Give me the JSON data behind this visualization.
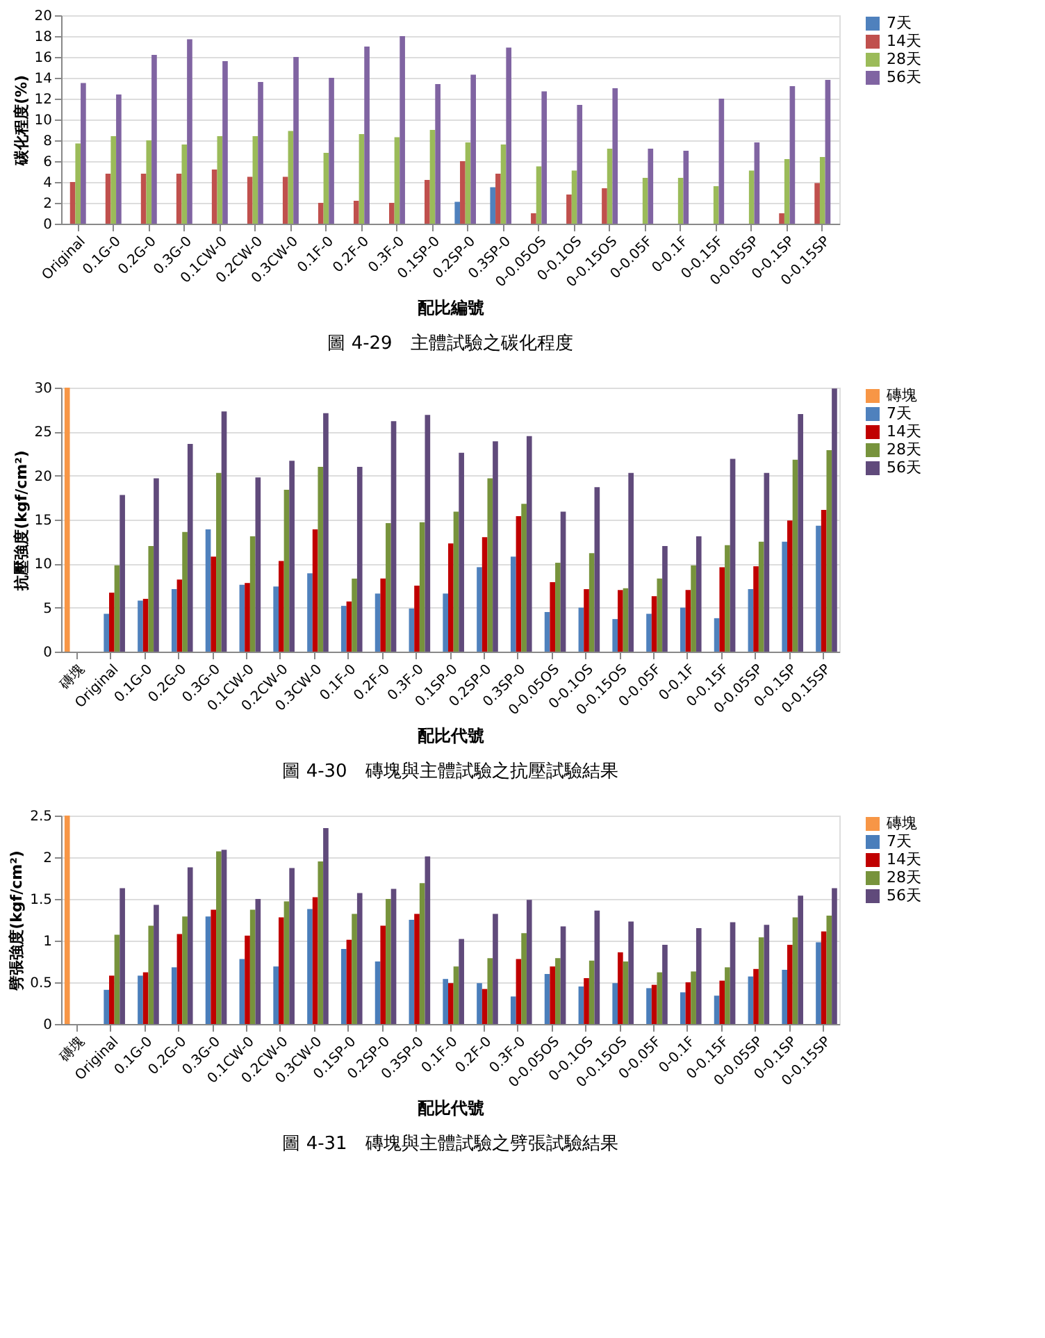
{
  "chart_data": [
    {
      "type": "bar",
      "title": "圖 4-29　主體試驗之碳化程度",
      "xlabel": "配比編號",
      "ylabel": "碳化程度(%)",
      "ylim": [
        0,
        20
      ],
      "yticks": [
        0,
        2,
        4,
        6,
        8,
        10,
        12,
        14,
        16,
        18,
        20
      ],
      "grid": "y",
      "legend": "right",
      "categories": [
        "Original",
        "0.1G-0",
        "0.2G-0",
        "0.3G-0",
        "0.1CW-0",
        "0.2CW-0",
        "0.3CW-0",
        "0.1F-0",
        "0.2F-0",
        "0.3F-0",
        "0.1SP-0",
        "0.2SP-0",
        "0.3SP-0",
        "0-0.05OS",
        "0-0.1OS",
        "0-0.15OS",
        "0-0.05F",
        "0-0.1F",
        "0-0.15F",
        "0-0.05SP",
        "0-0.1SP",
        "0-0.15SP"
      ],
      "series": [
        {
          "name": "7天",
          "color": "#4f81bd",
          "values": [
            null,
            null,
            null,
            null,
            null,
            null,
            null,
            null,
            null,
            null,
            null,
            2.1,
            3.5,
            null,
            null,
            null,
            null,
            null,
            null,
            null,
            null,
            null
          ]
        },
        {
          "name": "14天",
          "color": "#c0504d",
          "values": [
            4.0,
            4.8,
            4.8,
            4.8,
            5.2,
            4.5,
            4.5,
            2.0,
            2.2,
            2.0,
            4.2,
            6.0,
            4.8,
            1.0,
            2.8,
            3.4,
            null,
            null,
            null,
            null,
            1.0,
            3.9
          ]
        },
        {
          "name": "28天",
          "color": "#9bbb59",
          "values": [
            7.7,
            8.4,
            8.0,
            7.6,
            8.4,
            8.4,
            8.9,
            6.8,
            8.6,
            8.3,
            9.0,
            7.8,
            7.6,
            5.5,
            5.1,
            7.2,
            4.4,
            4.4,
            3.6,
            5.1,
            6.2,
            6.4
          ]
        },
        {
          "name": "56天",
          "color": "#8064a2",
          "values": [
            13.5,
            12.4,
            16.2,
            17.7,
            15.6,
            13.6,
            16.0,
            14.0,
            17.0,
            18.0,
            13.4,
            14.3,
            16.9,
            12.7,
            11.4,
            13.0,
            7.2,
            7.0,
            12.0,
            7.8,
            13.2,
            13.8
          ]
        }
      ]
    },
    {
      "type": "bar",
      "title": "圖 4-30　磚塊與主體試驗之抗壓試驗結果",
      "xlabel": "配比代號",
      "ylabel": "抗壓強度(kgf/cm²)",
      "ylim": [
        0,
        30
      ],
      "yticks": [
        0,
        5,
        10,
        15,
        20,
        25,
        30
      ],
      "grid": "y",
      "legend": "right",
      "categories": [
        "磚塊",
        "Original",
        "0.1G-0",
        "0.2G-0",
        "0.3G-0",
        "0.1CW-0",
        "0.2CW-0",
        "0.3CW-0",
        "0.1F-0",
        "0.2F-0",
        "0.3F-0",
        "0.1SP-0",
        "0.2SP-0",
        "0.3SP-0",
        "0-0.05OS",
        "0-0.1OS",
        "0-0.15OS",
        "0-0.05F",
        "0-0.1F",
        "0-0.15F",
        "0-0.05SP",
        "0-0.1SP",
        "0-0.15SP"
      ],
      "series": [
        {
          "name": "磚塊",
          "color": "#f79646",
          "values": [
            30,
            null,
            null,
            null,
            null,
            null,
            null,
            null,
            null,
            null,
            null,
            null,
            null,
            null,
            null,
            null,
            null,
            null,
            null,
            null,
            null,
            null,
            null
          ]
        },
        {
          "name": "7天",
          "color": "#4f81bd",
          "values": [
            null,
            4.3,
            5.8,
            7.1,
            13.9,
            7.6,
            7.4,
            8.9,
            5.2,
            6.6,
            4.9,
            6.6,
            9.6,
            10.8,
            4.5,
            5.0,
            3.7,
            4.3,
            5.0,
            3.8,
            7.1,
            12.5,
            14.3
          ]
        },
        {
          "name": "14天",
          "color": "#c00000",
          "values": [
            null,
            6.7,
            6.0,
            8.2,
            10.8,
            7.8,
            10.3,
            13.9,
            5.7,
            8.3,
            7.5,
            12.3,
            13.0,
            15.4,
            7.9,
            7.1,
            7.0,
            6.3,
            7.0,
            9.6,
            9.7,
            14.9,
            16.1
          ]
        },
        {
          "name": "28天",
          "color": "#77933c",
          "values": [
            null,
            9.8,
            12.0,
            13.6,
            20.3,
            13.1,
            18.4,
            21.0,
            8.3,
            14.6,
            14.7,
            15.9,
            19.7,
            16.8,
            10.1,
            11.2,
            7.2,
            8.3,
            9.8,
            12.1,
            12.5,
            21.8,
            22.9
          ]
        },
        {
          "name": "56天",
          "color": "#604a7b",
          "values": [
            null,
            17.8,
            19.7,
            23.6,
            27.3,
            19.8,
            21.7,
            27.1,
            21.0,
            26.2,
            26.9,
            22.6,
            23.9,
            24.5,
            15.9,
            18.7,
            20.3,
            12.0,
            13.1,
            21.9,
            20.3,
            27.0,
            29.9
          ]
        }
      ]
    },
    {
      "type": "bar",
      "title": "圖 4-31　磚塊與主體試驗之劈張試驗結果",
      "xlabel": "配比代號",
      "ylabel": "劈張強度(kgf/cm²)",
      "ylim": [
        0,
        2.5
      ],
      "yticks": [
        0,
        0.5,
        1,
        1.5,
        2,
        2.5
      ],
      "grid": "y",
      "legend": "right",
      "categories": [
        "磚塊",
        "Original",
        "0.1G-0",
        "0.2G-0",
        "0.3G-0",
        "0.1CW-0",
        "0.2CW-0",
        "0.3CW-0",
        "0.1SP-0",
        "0.2SP-0",
        "0.3SP-0",
        "0.1F-0",
        "0.2F-0",
        "0.3F-0",
        "0-0.05OS",
        "0-0.1OS",
        "0-0.15OS",
        "0-0.05F",
        "0-0.1F",
        "0-0.15F",
        "0-0.05SP",
        "0-0.1SP",
        "0-0.15SP"
      ],
      "series": [
        {
          "name": "磚塊",
          "color": "#f79646",
          "values": [
            2.5,
            null,
            null,
            null,
            null,
            null,
            null,
            null,
            null,
            null,
            null,
            null,
            null,
            null,
            null,
            null,
            null,
            null,
            null,
            null,
            null,
            null,
            null
          ]
        },
        {
          "name": "7天",
          "color": "#4a7ebb",
          "values": [
            null,
            0.41,
            0.58,
            0.68,
            1.29,
            0.78,
            0.69,
            1.38,
            0.9,
            0.75,
            1.25,
            0.54,
            0.49,
            0.33,
            0.6,
            0.45,
            0.49,
            0.43,
            0.38,
            0.34,
            0.57,
            0.65,
            0.98
          ]
        },
        {
          "name": "14天",
          "color": "#c00000",
          "values": [
            null,
            0.58,
            0.62,
            1.08,
            1.37,
            1.06,
            1.28,
            1.52,
            1.01,
            1.18,
            1.32,
            0.49,
            0.42,
            0.78,
            0.69,
            0.55,
            0.86,
            0.47,
            0.5,
            0.52,
            0.66,
            0.95,
            1.11
          ]
        },
        {
          "name": "28天",
          "color": "#77933c",
          "values": [
            null,
            1.07,
            1.18,
            1.29,
            2.07,
            1.37,
            1.47,
            1.95,
            1.32,
            1.5,
            1.69,
            0.69,
            0.79,
            1.09,
            0.79,
            0.76,
            0.75,
            0.62,
            0.63,
            0.68,
            1.04,
            1.28,
            1.3
          ]
        },
        {
          "name": "56天",
          "color": "#604a7b",
          "values": [
            null,
            1.63,
            1.43,
            1.88,
            2.09,
            1.5,
            1.87,
            2.35,
            1.57,
            1.62,
            2.01,
            1.02,
            1.32,
            1.49,
            1.17,
            1.36,
            1.23,
            0.95,
            1.15,
            1.22,
            1.19,
            1.54,
            1.63
          ]
        }
      ]
    }
  ]
}
